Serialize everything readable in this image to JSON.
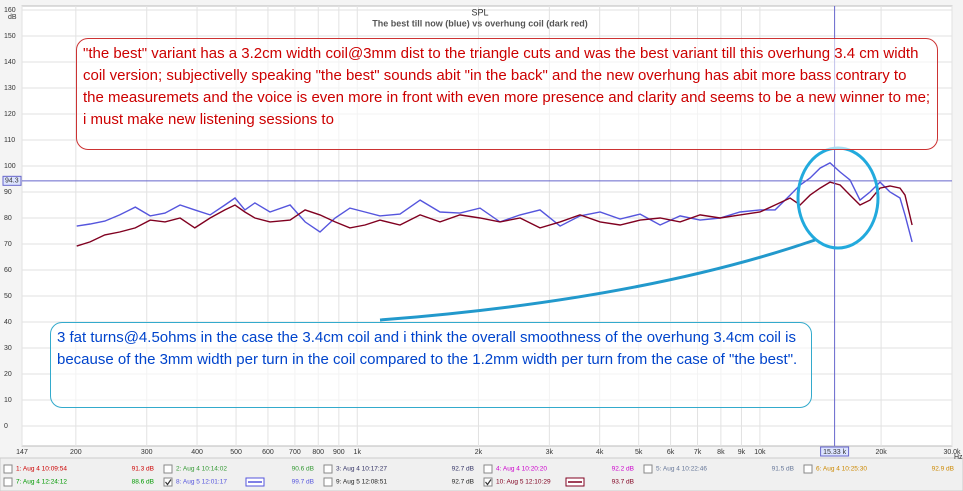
{
  "chart_data": {
    "type": "line",
    "title": "SPL",
    "subtitle": "The best till now (blue) vs overhung coil  (dark red)",
    "ylabel": "dB",
    "xlabel": "Hz",
    "xscale": "log",
    "grid": true,
    "xlim": [
      147,
      30000
    ],
    "ylim": [
      0,
      160
    ],
    "xticks": [
      147,
      200,
      300,
      400,
      500,
      600,
      700,
      800,
      900,
      {
        "value": 1000,
        "label": "1k"
      },
      {
        "value": 2000,
        "label": "2k"
      },
      {
        "value": 3000,
        "label": "3k"
      },
      {
        "value": 4000,
        "label": "4k"
      },
      {
        "value": 5000,
        "label": "5k"
      },
      {
        "value": 6000,
        "label": "6k"
      },
      {
        "value": 7000,
        "label": "7k"
      },
      {
        "value": 8000,
        "label": "8k"
      },
      {
        "value": 9000,
        "label": "9k"
      },
      {
        "value": 10000,
        "label": "10k"
      },
      {
        "value": 20000,
        "label": "20k"
      },
      {
        "value": 30000,
        "label": "30.0k"
      }
    ],
    "yticks": [
      0,
      10,
      20,
      30,
      40,
      50,
      60,
      70,
      80,
      90,
      100,
      110,
      120,
      130,
      140,
      150,
      160
    ],
    "x": [
      201,
      217,
      236,
      257,
      281,
      306,
      333,
      363,
      395,
      431,
      469,
      497,
      526,
      557,
      607,
      681,
      742,
      808,
      881,
      959,
      1045,
      1139,
      1277,
      1432,
      1605,
      1800,
      2018,
      2262,
      2537,
      2844,
      3189,
      3575,
      4010,
      4495,
      5040,
      5650,
      6335,
      7103,
      7963,
      8927,
      10008,
      10907,
      11883,
      12582,
      13323,
      14108,
      14935,
      15817,
      16743,
      17728,
      18772,
      19874,
      21050,
      22285,
      22932,
      23873
    ],
    "series": [
      {
        "name": "1: Aug 4 10:09:54",
        "level": "91.3 dB",
        "color": "#cc0000",
        "checked": false
      },
      {
        "name": "2: Aug 4 10:14:02",
        "level": "90.6 dB",
        "color": "#339933",
        "checked": false
      },
      {
        "name": "3: Aug 4 10:17:27",
        "level": "92.7 dB",
        "color": "#333366",
        "checked": false
      },
      {
        "name": "4: Aug 4 10:20:20",
        "level": "92.2 dB",
        "color": "#cc00cc",
        "checked": false
      },
      {
        "name": "5: Aug 4 10:22:46",
        "level": "91.5 dB",
        "color": "#667799",
        "checked": false
      },
      {
        "name": "6: Aug 4 10:25:30",
        "level": "92.9 dB",
        "color": "#cc8800",
        "checked": false
      },
      {
        "name": "7: Aug 4 12:24:12",
        "level": "88.6 dB",
        "color": "#009900",
        "checked": false
      },
      {
        "name": "8: Aug 5 12:01:17",
        "level": "99.7 dB",
        "color": "#5555dd",
        "checked": true,
        "values": [
          76.9,
          77.7,
          78.8,
          81.2,
          84.2,
          80.8,
          81.9,
          85.0,
          83.1,
          81.2,
          85.0,
          87.7,
          83.1,
          85.8,
          82.3,
          85.0,
          78.5,
          74.6,
          80.0,
          83.8,
          82.3,
          80.8,
          81.5,
          86.9,
          82.3,
          81.9,
          83.8,
          78.5,
          81.2,
          83.1,
          76.9,
          80.8,
          82.3,
          79.6,
          81.5,
          77.3,
          80.8,
          79.2,
          80.0,
          82.3,
          83.1,
          83.1,
          88.8,
          92.7,
          95.4,
          99.2,
          101.2,
          97.7,
          94.6,
          86.9,
          90.0,
          93.8,
          90.0,
          87.7,
          81.2,
          70.8
        ]
      },
      {
        "name": "9: Aug 5 12:08:51",
        "level": "92.7 dB",
        "color": "#222222",
        "checked": false
      },
      {
        "name": "10: Aug 5 12:10:29",
        "level": "93.7 dB",
        "color": "#800020",
        "checked": true,
        "values": [
          69.2,
          70.8,
          73.5,
          74.6,
          76.2,
          79.2,
          78.5,
          80.0,
          76.2,
          80.0,
          83.1,
          85.0,
          82.3,
          80.0,
          78.5,
          79.2,
          83.1,
          81.2,
          78.5,
          76.2,
          77.3,
          79.2,
          77.3,
          81.2,
          78.5,
          81.2,
          80.0,
          78.5,
          80.0,
          76.2,
          78.5,
          81.2,
          78.5,
          77.3,
          79.2,
          80.0,
          78.5,
          81.2,
          80.0,
          81.2,
          82.3,
          85.0,
          87.7,
          85.0,
          88.8,
          91.5,
          93.8,
          92.7,
          88.8,
          85.0,
          86.9,
          91.5,
          92.3,
          91.5,
          88.8,
          77.3
        ]
      }
    ],
    "cursor": {
      "x": {
        "value": 15330,
        "label": "15.33 k"
      },
      "y": 94.3
    },
    "annotations": [
      "\"the best\" variant has a 3.2cm width coil@3mm dist to the triangle cuts and was the best variant till this overhung 3.4 cm width coil version; subjectivelly speaking \"the best\" sounds abit \"in the back\" and the new overhung has abit more bass contrary to the measuremets and the voice is even more in front with even more presence and clarity and seems to be a new winner to me; i must make new listening sessions to",
      "3 fat turns@4.5ohms in the case the 3.4cm coil and i think the overall smoothness of the overhung 3.4cm coil is because of the 3mm width per turn in the coil compared to the 1.2mm width per turn from the case of \"the best\"."
    ]
  }
}
